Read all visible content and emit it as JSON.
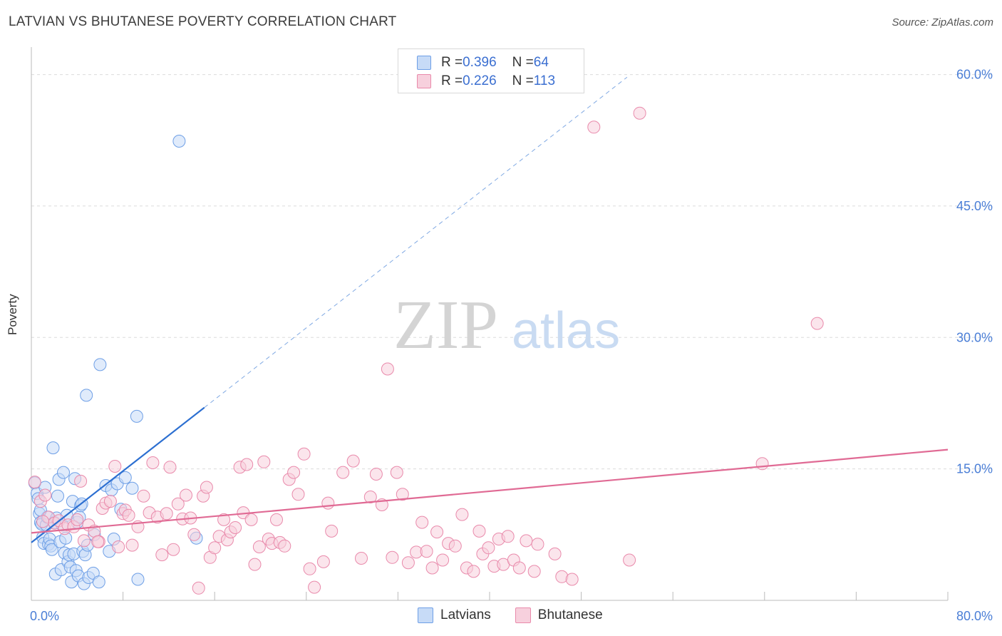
{
  "chart_data": {
    "type": "scatter",
    "title": "LATVIAN VS BHUTANESE POVERTY CORRELATION CHART",
    "source": "Source: ZipAtlas.com",
    "ylabel": "Poverty",
    "xlabel": "",
    "xlim": [
      0,
      80
    ],
    "ylim": [
      0,
      62
    ],
    "x_tick_labels": [
      "0.0%",
      "80.0%"
    ],
    "y_ticks": [
      15,
      30,
      45,
      60
    ],
    "y_tick_labels": [
      "15.0%",
      "30.0%",
      "45.0%",
      "60.0%"
    ],
    "watermark": {
      "bold": "ZIP",
      "light": "atlas"
    },
    "legend": [
      {
        "r_label": "R = ",
        "r_value": "0.396",
        "n_label": "N = ",
        "n_value": "64"
      },
      {
        "r_label": "R = ",
        "r_value": "0.226",
        "n_label": "N = ",
        "n_value": "113"
      }
    ],
    "series": [
      {
        "name": "Latvians",
        "color": "#6e9fe6",
        "fill": "#c7dbf7",
        "trend": {
          "x0": 0,
          "y0": 6.6,
          "x1": 15.1,
          "y1": 22.0,
          "dashed_to_x": 52,
          "dashed_to_y": 59.7,
          "color": "#2c6fd1"
        },
        "points": [
          [
            0.3,
            13.4
          ],
          [
            0.5,
            12.2
          ],
          [
            0.6,
            11.6
          ],
          [
            0.7,
            9.9
          ],
          [
            0.8,
            8.9
          ],
          [
            0.9,
            8.7
          ],
          [
            1.0,
            7.2
          ],
          [
            1.1,
            6.5
          ],
          [
            1.2,
            12.9
          ],
          [
            1.3,
            8.6
          ],
          [
            1.4,
            9.5
          ],
          [
            1.5,
            6.4
          ],
          [
            1.6,
            7.0
          ],
          [
            1.7,
            6.2
          ],
          [
            1.8,
            5.8
          ],
          [
            1.9,
            17.4
          ],
          [
            2.0,
            8.9
          ],
          [
            2.1,
            3.0
          ],
          [
            2.2,
            9.4
          ],
          [
            2.3,
            11.9
          ],
          [
            2.4,
            13.8
          ],
          [
            2.5,
            6.7
          ],
          [
            2.6,
            3.5
          ],
          [
            2.7,
            8.6
          ],
          [
            2.8,
            14.6
          ],
          [
            2.9,
            5.4
          ],
          [
            3.0,
            7.1
          ],
          [
            3.1,
            9.7
          ],
          [
            3.2,
            4.4
          ],
          [
            3.3,
            5.2
          ],
          [
            3.4,
            3.8
          ],
          [
            3.5,
            2.1
          ],
          [
            3.6,
            11.3
          ],
          [
            3.7,
            5.3
          ],
          [
            3.8,
            13.9
          ],
          [
            3.9,
            3.4
          ],
          [
            4.0,
            8.9
          ],
          [
            4.1,
            2.8
          ],
          [
            4.2,
            9.5
          ],
          [
            4.3,
            10.8
          ],
          [
            4.4,
            11.0
          ],
          [
            4.5,
            5.6
          ],
          [
            4.6,
            1.9
          ],
          [
            4.7,
            5.2
          ],
          [
            4.8,
            23.4
          ],
          [
            4.9,
            6.3
          ],
          [
            5.0,
            2.6
          ],
          [
            5.4,
            3.1
          ],
          [
            5.5,
            7.5
          ],
          [
            5.9,
            2.1
          ],
          [
            6.0,
            26.9
          ],
          [
            6.5,
            13.1
          ],
          [
            6.8,
            5.6
          ],
          [
            7.0,
            12.6
          ],
          [
            7.2,
            7.0
          ],
          [
            7.5,
            13.3
          ],
          [
            7.8,
            10.4
          ],
          [
            8.2,
            14.0
          ],
          [
            8.8,
            12.8
          ],
          [
            9.3,
            2.4
          ],
          [
            9.2,
            21.0
          ],
          [
            12.9,
            52.4
          ],
          [
            14.4,
            7.1
          ],
          [
            0.8,
            10.3
          ]
        ]
      },
      {
        "name": "Bhutanese",
        "color": "#e98aab",
        "fill": "#f7d0dd",
        "trend": {
          "x0": 0,
          "y0": 7.7,
          "x1": 80,
          "y1": 17.2,
          "color": "#e06a94"
        },
        "points": [
          [
            0.3,
            13.5
          ],
          [
            0.8,
            11.3
          ],
          [
            1.2,
            12.0
          ],
          [
            1.5,
            9.5
          ],
          [
            2.0,
            8.8
          ],
          [
            2.4,
            9.1
          ],
          [
            2.9,
            8.2
          ],
          [
            3.2,
            8.6
          ],
          [
            3.7,
            8.4
          ],
          [
            4.0,
            9.2
          ],
          [
            4.3,
            13.6
          ],
          [
            4.6,
            6.8
          ],
          [
            5.0,
            8.6
          ],
          [
            5.5,
            7.9
          ],
          [
            5.9,
            6.7
          ],
          [
            6.2,
            10.5
          ],
          [
            6.5,
            11.1
          ],
          [
            6.9,
            11.3
          ],
          [
            7.3,
            15.3
          ],
          [
            7.6,
            6.1
          ],
          [
            8.0,
            9.9
          ],
          [
            8.2,
            10.3
          ],
          [
            8.5,
            9.7
          ],
          [
            8.8,
            6.3
          ],
          [
            9.3,
            8.4
          ],
          [
            9.8,
            11.9
          ],
          [
            10.3,
            10.0
          ],
          [
            10.6,
            15.7
          ],
          [
            11.0,
            9.5
          ],
          [
            11.4,
            5.2
          ],
          [
            11.8,
            9.9
          ],
          [
            12.1,
            15.2
          ],
          [
            12.4,
            5.8
          ],
          [
            12.8,
            11.0
          ],
          [
            13.2,
            9.3
          ],
          [
            13.5,
            12.0
          ],
          [
            13.9,
            9.4
          ],
          [
            14.2,
            7.5
          ],
          [
            14.6,
            1.4
          ],
          [
            15.0,
            11.9
          ],
          [
            15.3,
            12.9
          ],
          [
            15.6,
            4.9
          ],
          [
            16.0,
            6.0
          ],
          [
            16.4,
            7.3
          ],
          [
            16.8,
            9.2
          ],
          [
            17.1,
            6.9
          ],
          [
            17.4,
            7.8
          ],
          [
            17.8,
            8.3
          ],
          [
            18.2,
            15.2
          ],
          [
            18.5,
            10.0
          ],
          [
            18.8,
            15.5
          ],
          [
            19.2,
            9.2
          ],
          [
            19.5,
            4.1
          ],
          [
            19.9,
            6.1
          ],
          [
            20.3,
            15.8
          ],
          [
            20.7,
            7.0
          ],
          [
            21.0,
            6.5
          ],
          [
            21.4,
            9.2
          ],
          [
            21.7,
            6.6
          ],
          [
            22.1,
            6.2
          ],
          [
            22.5,
            13.8
          ],
          [
            22.9,
            14.6
          ],
          [
            23.3,
            12.1
          ],
          [
            23.8,
            16.7
          ],
          [
            24.3,
            3.6
          ],
          [
            24.7,
            1.5
          ],
          [
            25.5,
            4.4
          ],
          [
            25.9,
            11.1
          ],
          [
            26.2,
            7.9
          ],
          [
            27.2,
            14.6
          ],
          [
            28.1,
            15.9
          ],
          [
            28.8,
            4.8
          ],
          [
            29.6,
            11.8
          ],
          [
            30.1,
            14.4
          ],
          [
            30.6,
            10.9
          ],
          [
            31.1,
            26.4
          ],
          [
            31.5,
            4.9
          ],
          [
            31.9,
            14.6
          ],
          [
            32.4,
            12.1
          ],
          [
            32.9,
            4.3
          ],
          [
            33.6,
            5.5
          ],
          [
            34.1,
            8.9
          ],
          [
            34.5,
            5.6
          ],
          [
            35.0,
            3.7
          ],
          [
            35.4,
            7.8
          ],
          [
            35.9,
            4.6
          ],
          [
            36.4,
            6.5
          ],
          [
            37.0,
            6.2
          ],
          [
            37.6,
            9.8
          ],
          [
            38.0,
            3.7
          ],
          [
            38.6,
            3.3
          ],
          [
            39.1,
            7.9
          ],
          [
            39.4,
            5.3
          ],
          [
            39.9,
            6.0
          ],
          [
            40.4,
            3.9
          ],
          [
            40.8,
            7.0
          ],
          [
            41.2,
            4.1
          ],
          [
            41.6,
            7.3
          ],
          [
            42.1,
            4.6
          ],
          [
            42.6,
            3.7
          ],
          [
            43.2,
            6.8
          ],
          [
            43.9,
            3.3
          ],
          [
            44.2,
            6.4
          ],
          [
            45.7,
            5.3
          ],
          [
            46.3,
            2.7
          ],
          [
            47.2,
            2.4
          ],
          [
            49.1,
            54.0
          ],
          [
            52.2,
            4.6
          ],
          [
            53.1,
            55.6
          ],
          [
            68.6,
            31.6
          ],
          [
            63.8,
            15.6
          ],
          [
            5.8,
            6.7
          ],
          [
            1.0,
            9.0
          ]
        ]
      }
    ],
    "bottom_legend": [
      "Latvians",
      "Bhutanese"
    ]
  }
}
